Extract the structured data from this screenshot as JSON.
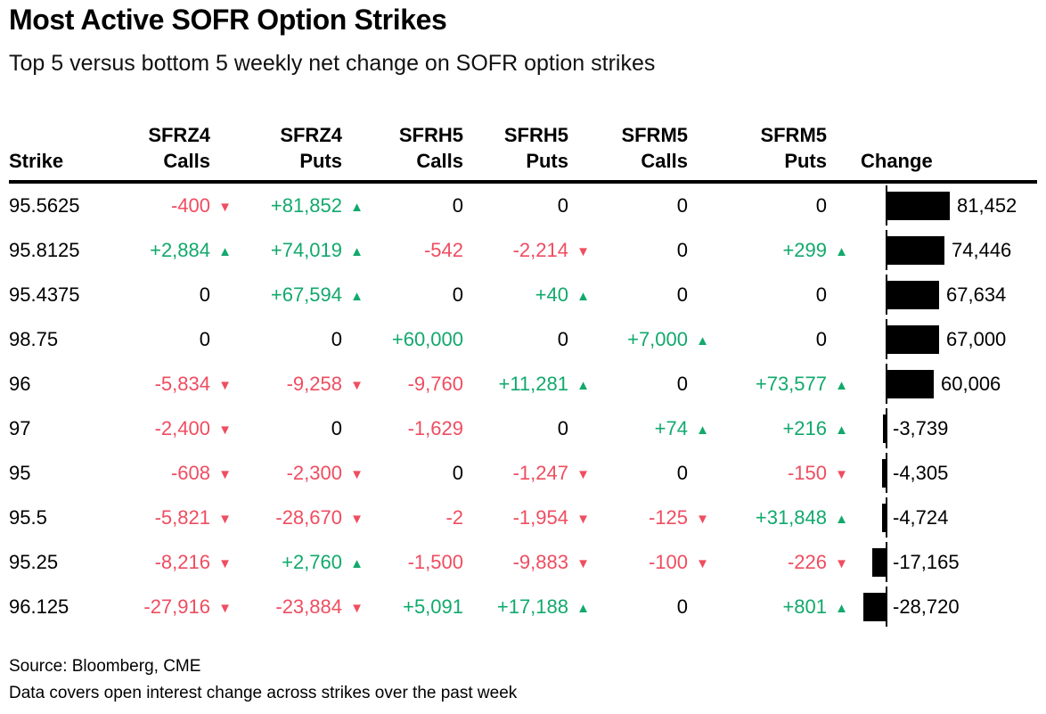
{
  "header": {
    "title": "Most Active SOFR Option Strikes",
    "subtitle": "Top 5 versus bottom 5 weekly net change on SOFR option strikes"
  },
  "colors": {
    "positive": "#12a96c",
    "negative": "#ef4d60",
    "bar": "#000000",
    "text": "#000000"
  },
  "table": {
    "columns": [
      {
        "id": "strike",
        "line1": "",
        "line2": "Strike"
      },
      {
        "id": "sfrz4-calls",
        "line1": "SFRZ4",
        "line2": "Calls"
      },
      {
        "id": "sfrz4-puts",
        "line1": "SFRZ4",
        "line2": "Puts"
      },
      {
        "id": "sfrh5-calls",
        "line1": "SFRH5",
        "line2": "Calls"
      },
      {
        "id": "sfrh5-puts",
        "line1": "SFRH5",
        "line2": "Puts"
      },
      {
        "id": "sfrm5-calls",
        "line1": "SFRM5",
        "line2": "Calls"
      },
      {
        "id": "sfrm5-puts",
        "line1": "SFRM5",
        "line2": "Puts"
      },
      {
        "id": "change",
        "line1": "",
        "line2": "Change"
      }
    ],
    "rows": [
      {
        "strike": "95.5625",
        "cells": [
          {
            "text": "-400",
            "dir": "down"
          },
          {
            "text": "+81,852",
            "dir": "up"
          },
          {
            "text": "0"
          },
          {
            "text": "0"
          },
          {
            "text": "0"
          },
          {
            "text": "0"
          }
        ],
        "change": {
          "label": "81,452",
          "value": 81452
        }
      },
      {
        "strike": "95.8125",
        "cells": [
          {
            "text": "+2,884",
            "dir": "up"
          },
          {
            "text": "+74,019",
            "dir": "up"
          },
          {
            "text": "-542"
          },
          {
            "text": "-2,214",
            "dir": "down"
          },
          {
            "text": "0"
          },
          {
            "text": "+299",
            "dir": "up"
          }
        ],
        "change": {
          "label": "74,446",
          "value": 74446
        }
      },
      {
        "strike": "95.4375",
        "cells": [
          {
            "text": "0"
          },
          {
            "text": "+67,594",
            "dir": "up"
          },
          {
            "text": "0"
          },
          {
            "text": "+40",
            "dir": "up"
          },
          {
            "text": "0"
          },
          {
            "text": "0"
          }
        ],
        "change": {
          "label": "67,634",
          "value": 67634
        }
      },
      {
        "strike": "98.75",
        "cells": [
          {
            "text": "0"
          },
          {
            "text": "0"
          },
          {
            "text": "+60,000"
          },
          {
            "text": "0"
          },
          {
            "text": "+7,000",
            "dir": "up"
          },
          {
            "text": "0"
          }
        ],
        "change": {
          "label": "67,000",
          "value": 67000
        }
      },
      {
        "strike": "96",
        "cells": [
          {
            "text": "-5,834",
            "dir": "down"
          },
          {
            "text": "-9,258",
            "dir": "down"
          },
          {
            "text": "-9,760"
          },
          {
            "text": "+11,281",
            "dir": "up"
          },
          {
            "text": "0"
          },
          {
            "text": "+73,577",
            "dir": "up"
          }
        ],
        "change": {
          "label": "60,006",
          "value": 60006
        }
      },
      {
        "strike": "97",
        "cells": [
          {
            "text": "-2,400",
            "dir": "down"
          },
          {
            "text": "0"
          },
          {
            "text": "-1,629"
          },
          {
            "text": "0"
          },
          {
            "text": "+74",
            "dir": "up"
          },
          {
            "text": "+216",
            "dir": "up"
          }
        ],
        "change": {
          "label": "-3,739",
          "value": -3739
        }
      },
      {
        "strike": "95",
        "cells": [
          {
            "text": "-608",
            "dir": "down"
          },
          {
            "text": "-2,300",
            "dir": "down"
          },
          {
            "text": "0"
          },
          {
            "text": "-1,247",
            "dir": "down"
          },
          {
            "text": "0"
          },
          {
            "text": "-150",
            "dir": "down"
          }
        ],
        "change": {
          "label": "-4,305",
          "value": -4305
        }
      },
      {
        "strike": "95.5",
        "cells": [
          {
            "text": "-5,821",
            "dir": "down"
          },
          {
            "text": "-28,670",
            "dir": "down"
          },
          {
            "text": "-2"
          },
          {
            "text": "-1,954",
            "dir": "down"
          },
          {
            "text": "-125",
            "dir": "down"
          },
          {
            "text": "+31,848",
            "dir": "up"
          }
        ],
        "change": {
          "label": "-4,724",
          "value": -4724
        }
      },
      {
        "strike": "95.25",
        "cells": [
          {
            "text": "-8,216",
            "dir": "down"
          },
          {
            "text": "+2,760",
            "dir": "up"
          },
          {
            "text": "-1,500"
          },
          {
            "text": "-9,883",
            "dir": "down"
          },
          {
            "text": "-100",
            "dir": "down"
          },
          {
            "text": "-226",
            "dir": "down"
          }
        ],
        "change": {
          "label": "-17,165",
          "value": -17165
        }
      },
      {
        "strike": "96.125",
        "cells": [
          {
            "text": "-27,916",
            "dir": "down"
          },
          {
            "text": "-23,884",
            "dir": "down"
          },
          {
            "text": "+5,091"
          },
          {
            "text": "+17,188",
            "dir": "up"
          },
          {
            "text": "0"
          },
          {
            "text": "+801",
            "dir": "up"
          }
        ],
        "change": {
          "label": "-28,720",
          "value": -28720
        }
      }
    ]
  },
  "footer": {
    "source": "Source: Bloomberg, CME",
    "note": "Data covers open interest change across strikes over the past week"
  },
  "chart_data": {
    "type": "bar",
    "orientation": "horizontal",
    "title": "Most Active SOFR Option Strikes",
    "subtitle": "Top 5 versus bottom 5 weekly net change on SOFR option strikes",
    "categories": [
      "95.5625",
      "95.8125",
      "95.4375",
      "98.75",
      "96",
      "97",
      "95",
      "95.5",
      "95.25",
      "96.125"
    ],
    "values": [
      81452,
      74446,
      67634,
      67000,
      60006,
      -3739,
      -4305,
      -4724,
      -17165,
      -28720
    ],
    "xlabel": "Change",
    "ylabel": "Strike",
    "xlim": [
      -81452,
      81452
    ],
    "bar_color": "#000000",
    "grid": false,
    "legend": false,
    "series": [
      {
        "name": "SFRZ4 Calls",
        "values": [
          -400,
          2884,
          0,
          0,
          -5834,
          -2400,
          -608,
          -5821,
          -8216,
          -27916
        ]
      },
      {
        "name": "SFRZ4 Puts",
        "values": [
          81852,
          74019,
          67594,
          0,
          -9258,
          0,
          -2300,
          -28670,
          2760,
          -23884
        ]
      },
      {
        "name": "SFRH5 Calls",
        "values": [
          0,
          -542,
          0,
          60000,
          -9760,
          -1629,
          0,
          -2,
          -1500,
          5091
        ]
      },
      {
        "name": "SFRH5 Puts",
        "values": [
          0,
          -2214,
          40,
          0,
          11281,
          0,
          -1247,
          -1954,
          -9883,
          17188
        ]
      },
      {
        "name": "SFRM5 Calls",
        "values": [
          0,
          0,
          0,
          7000,
          0,
          74,
          0,
          -125,
          -100,
          0
        ]
      },
      {
        "name": "SFRM5 Puts",
        "values": [
          0,
          299,
          0,
          0,
          73577,
          216,
          -150,
          31848,
          -226,
          801
        ]
      }
    ]
  }
}
